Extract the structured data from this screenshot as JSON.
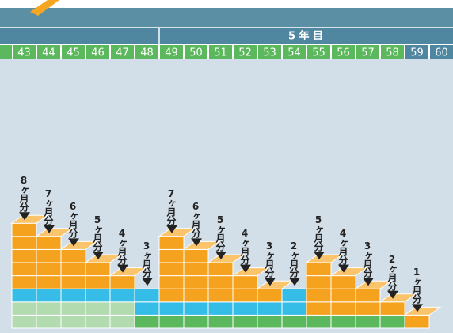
{
  "header": {
    "year_label": "5 年 目"
  },
  "columns": [
    {
      "number": 43,
      "label": "8ヶ月分"
    },
    {
      "number": 44,
      "label": "7ヶ月分"
    },
    {
      "number": 45,
      "label": "6ヶ月分"
    },
    {
      "number": 46,
      "label": "5ヶ月分"
    },
    {
      "number": 47,
      "label": "4ヶ月分"
    },
    {
      "number": 48,
      "label": "3ヶ月分"
    },
    {
      "number": 49,
      "label": "7ヶ月分"
    },
    {
      "number": 50,
      "label": "6ヶ月分"
    },
    {
      "number": 51,
      "label": "5ヶ月分"
    },
    {
      "number": 52,
      "label": "4ヶ月分"
    },
    {
      "number": 53,
      "label": "3ヶ月分"
    },
    {
      "number": 54,
      "label": "2ヶ月分"
    },
    {
      "number": 55,
      "label": "5ヶ月分"
    },
    {
      "number": 56,
      "label": "4ヶ月分"
    },
    {
      "number": 57,
      "label": "3ヶ月分"
    },
    {
      "number": 58,
      "label": "2ヶ月分"
    },
    {
      "number": 59,
      "label": "1ヶ月分"
    },
    {
      "number": 60
    }
  ]
}
